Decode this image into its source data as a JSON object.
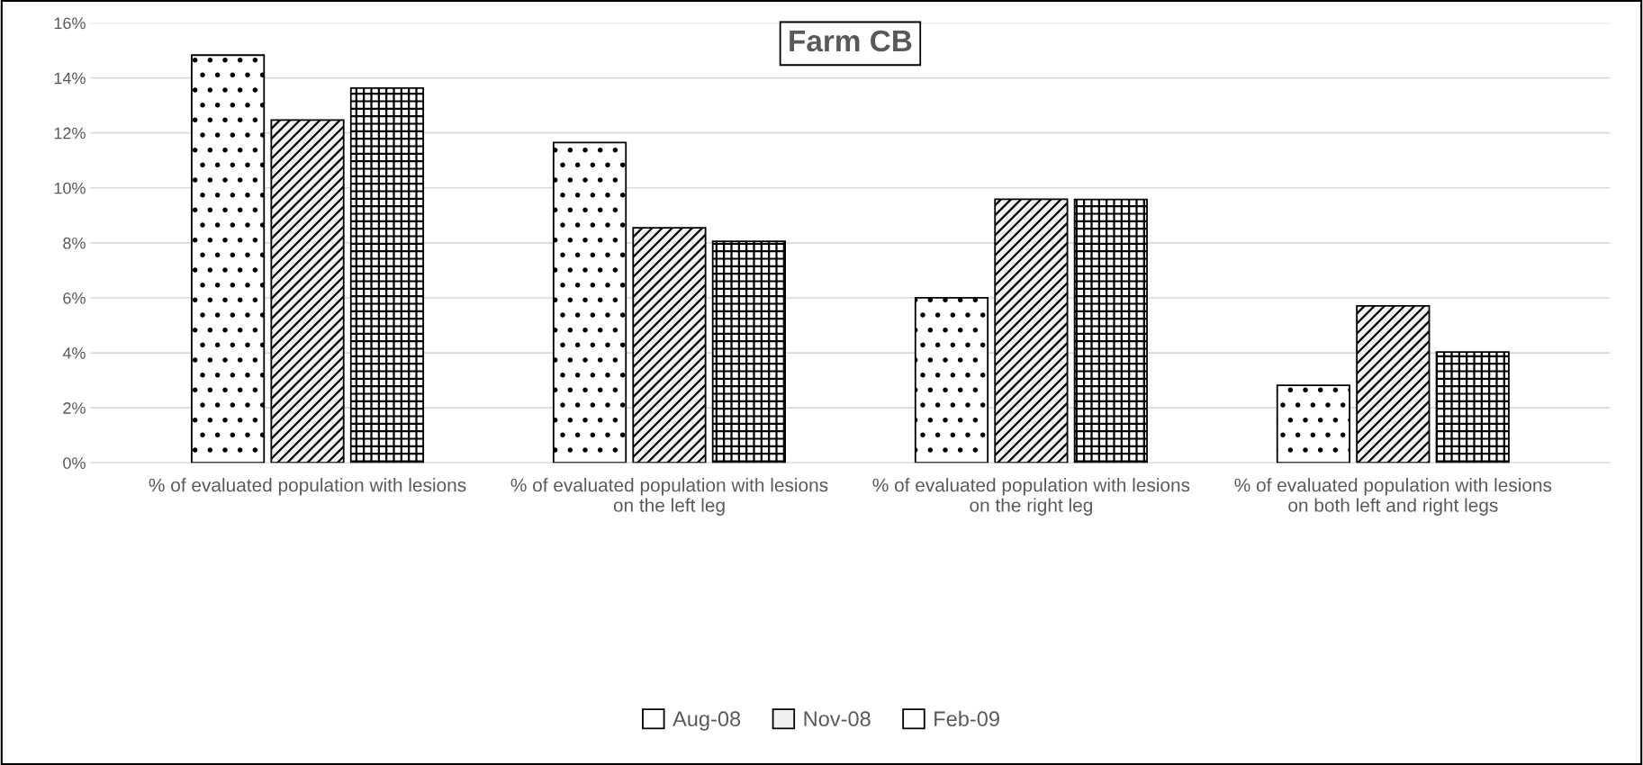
{
  "chart_data": {
    "type": "bar",
    "title": "Farm CB",
    "categories": [
      "% of evaluated population with lesions",
      "% of evaluated population with lesions on the left leg",
      "% of evaluated population with lesions on the right leg",
      "% of evaluated population with lesions on both left and right legs"
    ],
    "series": [
      {
        "name": "Aug-08",
        "color": "#ffffff",
        "values": [
          14.83,
          11.65,
          6.0,
          2.82
        ]
      },
      {
        "name": "Nov-08",
        "color": "#f0f0f0",
        "values": [
          12.47,
          8.55,
          9.59,
          5.71
        ]
      },
      {
        "name": "Feb-09",
        "color": "#ffffff",
        "values": [
          13.63,
          8.06,
          9.58,
          4.03
        ]
      }
    ],
    "ylim": [
      0,
      16
    ],
    "yticks": [
      {
        "value": 0,
        "label": "0%"
      },
      {
        "value": 2,
        "label": "2%"
      },
      {
        "value": 4,
        "label": "4%"
      },
      {
        "value": 6,
        "label": "6%"
      },
      {
        "value": 8,
        "label": "8%"
      },
      {
        "value": 10,
        "label": "10%"
      },
      {
        "value": 12,
        "label": "12%"
      },
      {
        "value": 14,
        "label": "14%"
      },
      {
        "value": 16,
        "label": "16%"
      }
    ],
    "grid": "y",
    "legend": "bottom"
  }
}
